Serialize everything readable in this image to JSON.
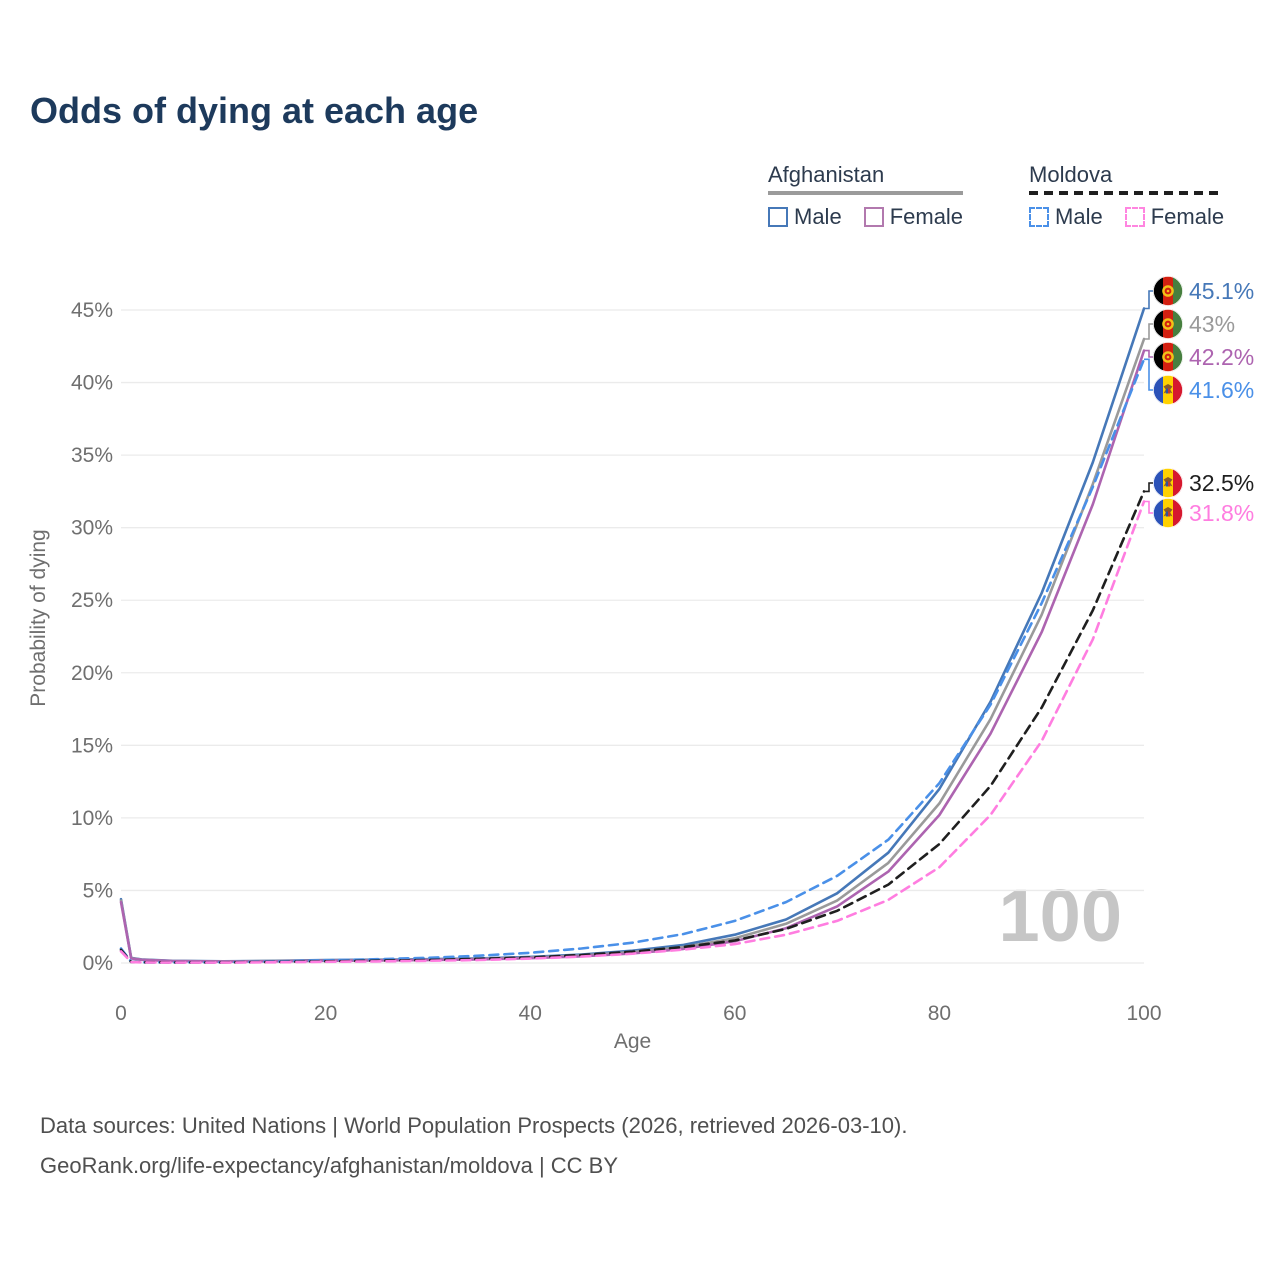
{
  "title": "Odds of dying at each age",
  "legend": {
    "groups": [
      {
        "title": "Afghanistan",
        "style": "solid",
        "underline_color": "#9b9b9b",
        "items": [
          {
            "label": "Male",
            "color": "#4678b8",
            "dash": false
          },
          {
            "label": "Female",
            "color": "#b279ae",
            "dash": false
          }
        ]
      },
      {
        "title": "Moldova",
        "style": "dashed",
        "underline_color": "#1f1f1f",
        "items": [
          {
            "label": "Male",
            "color": "#4a90e8",
            "dash": true
          },
          {
            "label": "Female",
            "color": "#ff85e0",
            "dash": true
          }
        ]
      }
    ]
  },
  "chart_data": {
    "type": "line",
    "title": "Odds of dying at each age",
    "xlabel": "Age",
    "ylabel": "Probability of dying",
    "xlim": [
      0,
      100
    ],
    "ylim_pct": [
      0,
      45
    ],
    "x_ticks": [
      0,
      20,
      40,
      60,
      80,
      100
    ],
    "y_ticks_pct": [
      0,
      5,
      10,
      15,
      20,
      25,
      30,
      35,
      40,
      45
    ],
    "grid": "horizontal-only",
    "legend_position": "top-right",
    "watermark": "100",
    "ages": [
      0,
      1,
      2,
      5,
      10,
      15,
      20,
      25,
      30,
      35,
      40,
      45,
      50,
      55,
      60,
      65,
      70,
      75,
      80,
      85,
      90,
      95,
      100
    ],
    "series": [
      {
        "name": "Afghanistan Male",
        "country": "Afghanistan",
        "sex": "Male",
        "color": "#4678b8",
        "dashed": false,
        "flag": "af",
        "end_label": "45.1%",
        "end_value_pct": 45.1,
        "values_pct": [
          4.4,
          0.35,
          0.25,
          0.15,
          0.12,
          0.15,
          0.2,
          0.23,
          0.26,
          0.32,
          0.42,
          0.58,
          0.85,
          1.25,
          1.95,
          3.0,
          4.8,
          7.6,
          12.0,
          18.0,
          25.5,
          34.5,
          45.1
        ]
      },
      {
        "name": "Afghanistan",
        "country": "Afghanistan",
        "sex": "Both",
        "color": "#9a9a9a",
        "dashed": false,
        "flag": "af",
        "end_label": "43%",
        "end_value_pct": 43,
        "values_pct": [
          4.3,
          0.33,
          0.23,
          0.14,
          0.11,
          0.13,
          0.17,
          0.2,
          0.23,
          0.28,
          0.37,
          0.52,
          0.75,
          1.1,
          1.7,
          2.7,
          4.3,
          6.9,
          11.0,
          16.8,
          24.0,
          33.0,
          43.0
        ]
      },
      {
        "name": "Afghanistan Female",
        "country": "Afghanistan",
        "sex": "Female",
        "color": "#ad64b0",
        "dashed": false,
        "flag": "af",
        "end_label": "42.2%",
        "end_value_pct": 42.2,
        "values_pct": [
          4.2,
          0.31,
          0.22,
          0.13,
          0.1,
          0.12,
          0.15,
          0.17,
          0.2,
          0.25,
          0.33,
          0.46,
          0.66,
          0.97,
          1.5,
          2.4,
          3.9,
          6.3,
          10.2,
          15.8,
          22.8,
          31.6,
          42.2
        ]
      },
      {
        "name": "Moldova Male",
        "country": "Moldova",
        "sex": "Male",
        "color": "#4a90e8",
        "dashed": true,
        "flag": "md",
        "end_label": "41.6%",
        "end_value_pct": 41.6,
        "values_pct": [
          1.0,
          0.08,
          0.05,
          0.04,
          0.05,
          0.1,
          0.18,
          0.26,
          0.36,
          0.5,
          0.7,
          1.0,
          1.4,
          2.0,
          2.9,
          4.2,
          6.0,
          8.5,
          12.4,
          17.8,
          24.8,
          32.8,
          41.6
        ]
      },
      {
        "name": "Moldova",
        "country": "Moldova",
        "sex": "Both",
        "color": "#1f1f1f",
        "dashed": true,
        "flag": "md",
        "end_label": "32.5%",
        "end_value_pct": 32.5,
        "values_pct": [
          0.9,
          0.07,
          0.05,
          0.04,
          0.04,
          0.07,
          0.12,
          0.16,
          0.21,
          0.28,
          0.38,
          0.55,
          0.78,
          1.1,
          1.55,
          2.35,
          3.6,
          5.4,
          8.2,
          12.2,
          17.6,
          24.3,
          32.5
        ]
      },
      {
        "name": "Moldova Female",
        "country": "Moldova",
        "sex": "Female",
        "color": "#ff7de0",
        "dashed": true,
        "flag": "md",
        "end_label": "31.8%",
        "end_value_pct": 31.8,
        "values_pct": [
          0.8,
          0.06,
          0.04,
          0.03,
          0.03,
          0.05,
          0.08,
          0.11,
          0.15,
          0.21,
          0.3,
          0.44,
          0.64,
          0.92,
          1.3,
          1.95,
          2.9,
          4.35,
          6.6,
          10.2,
          15.3,
          22.3,
          31.8
        ]
      }
    ]
  },
  "footer": {
    "line1": "Data sources: United Nations | World Population Prospects (2026, retrieved 2026-03-10).",
    "line2": "GeoRank.org/life-expectancy/afghanistan/moldova | CC BY"
  }
}
